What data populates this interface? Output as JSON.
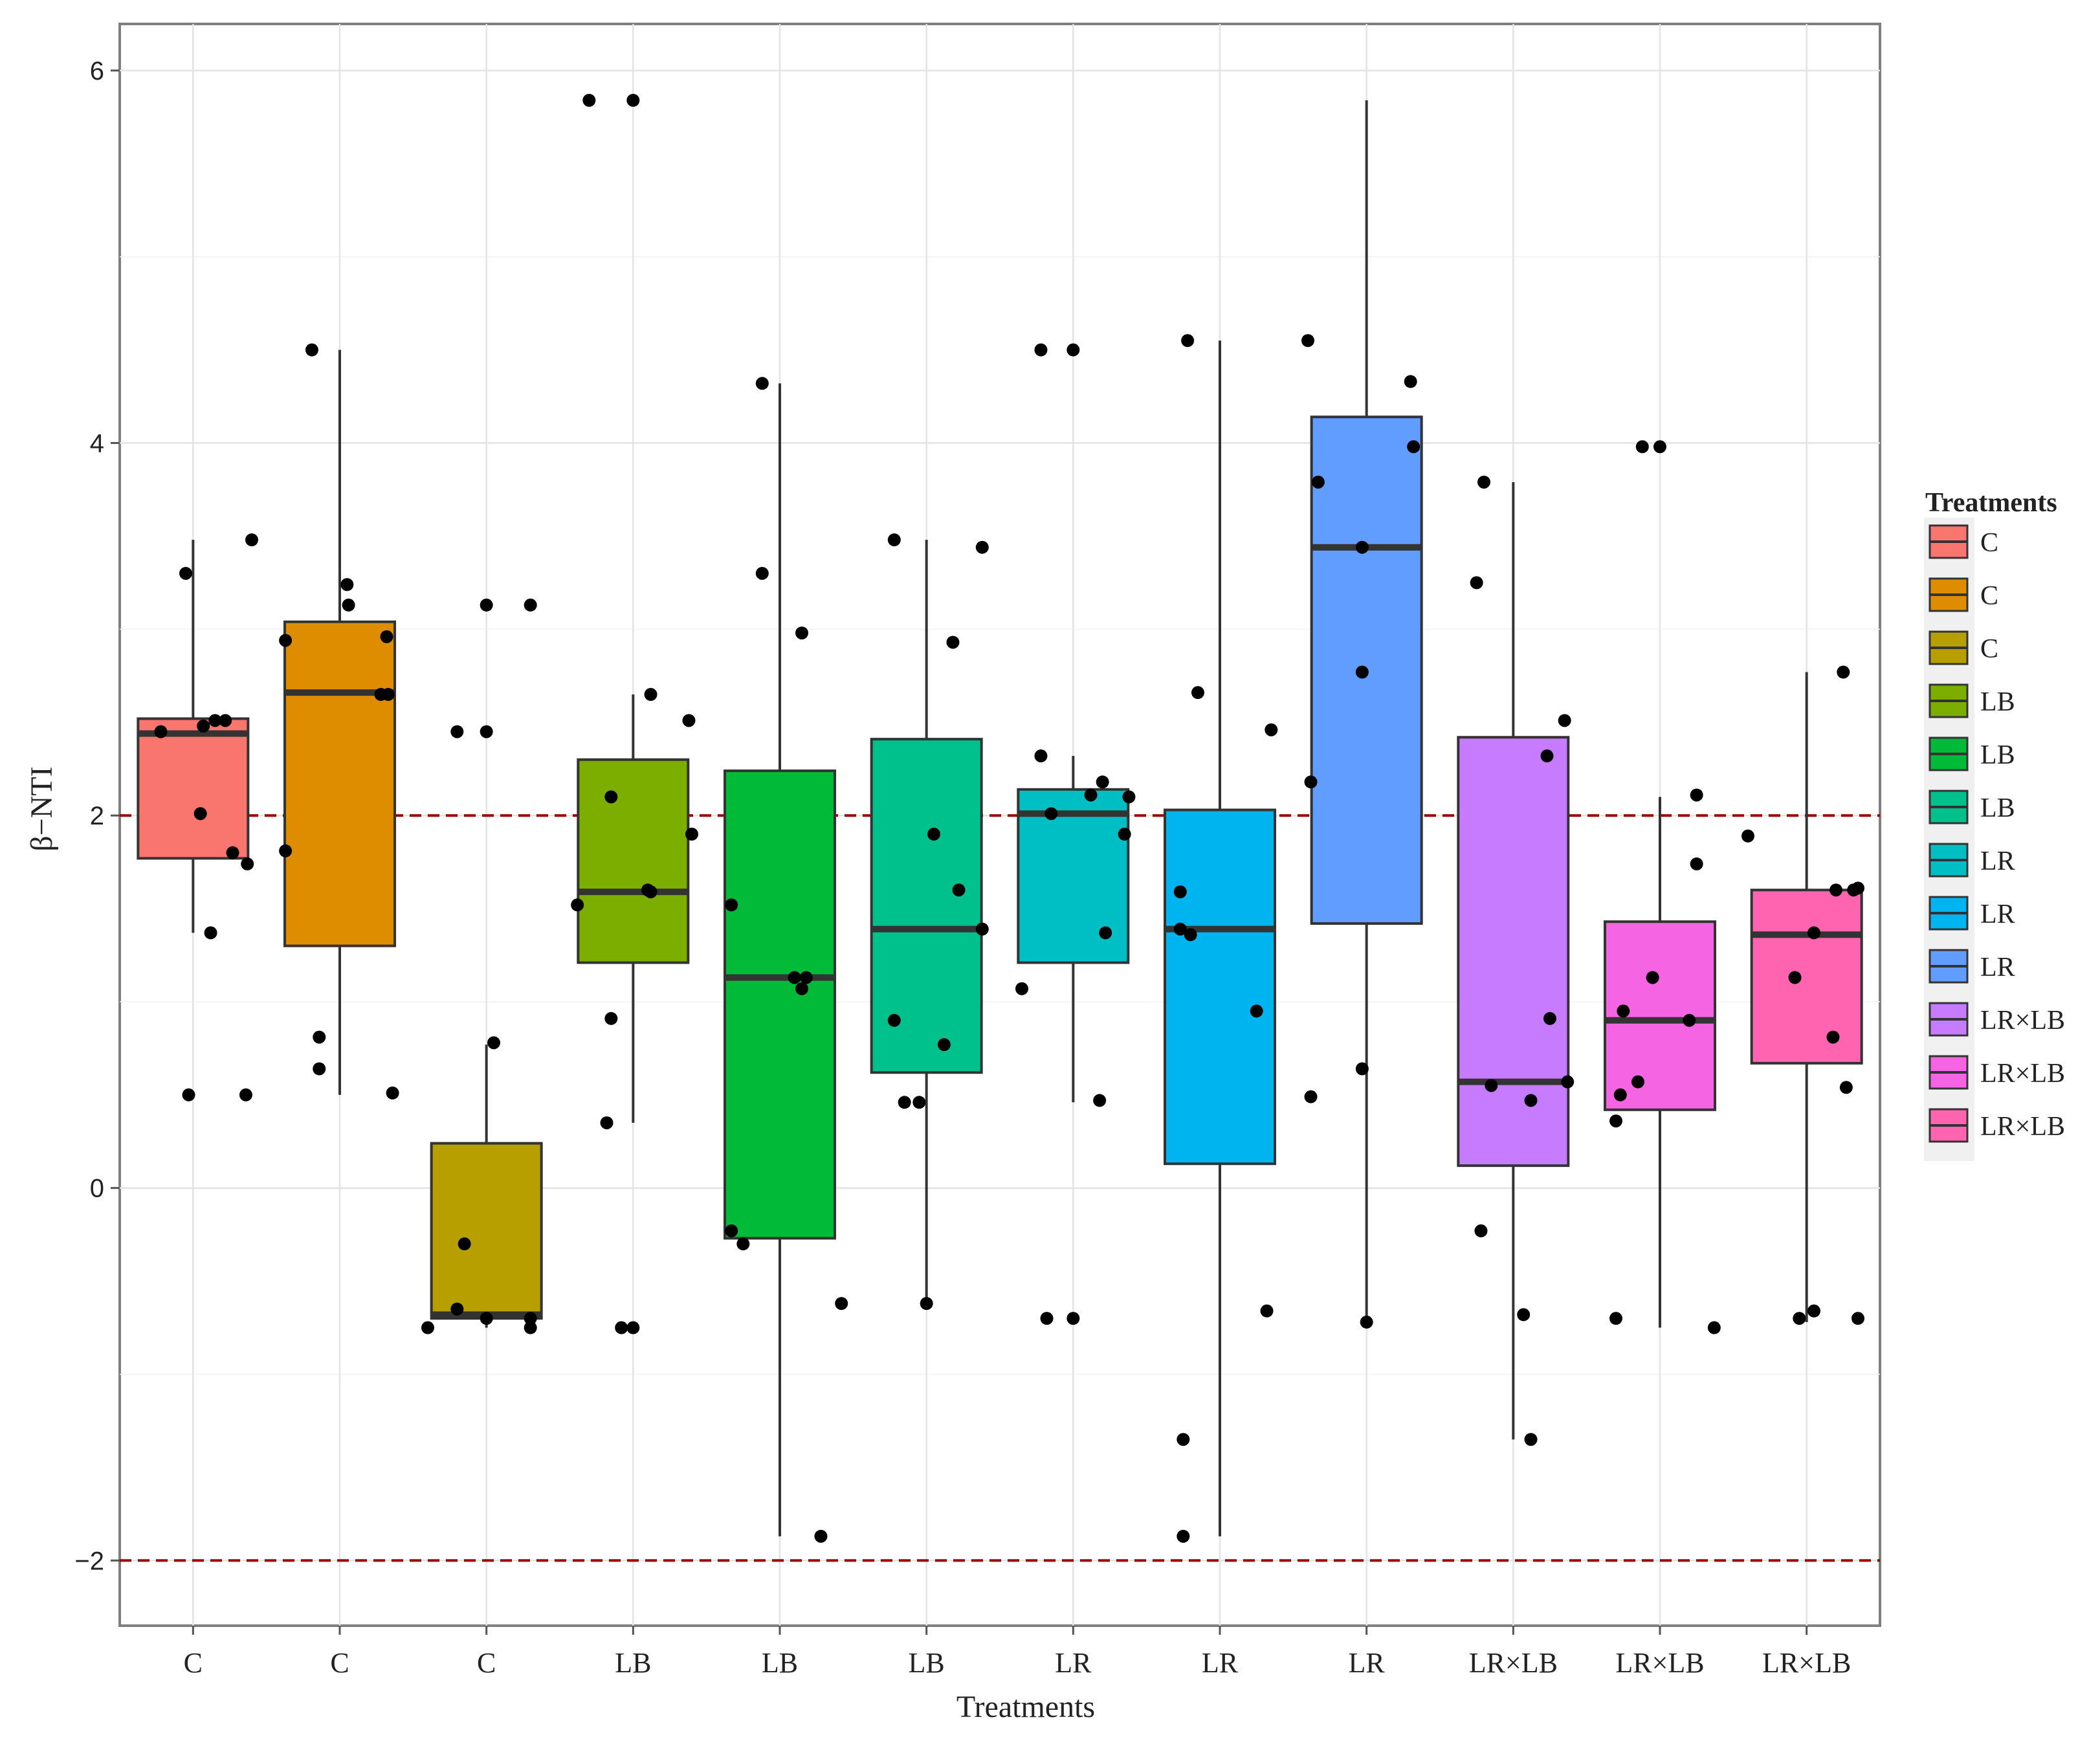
{
  "chart_data": {
    "type": "boxplot",
    "title": "",
    "xlabel": "Treatments",
    "ylabel": "β−NTI",
    "ylim": [
      -2.35,
      6.25
    ],
    "yticks": [
      -2,
      0,
      2,
      4,
      6
    ],
    "ytick_labels": [
      "−2",
      "0",
      "2",
      "4",
      "6"
    ],
    "grid": true,
    "reference_lines": [
      {
        "y": 2,
        "color": "#a00000",
        "style": "dashed"
      },
      {
        "y": -2,
        "color": "#a00000",
        "style": "dashed"
      }
    ],
    "legend": {
      "title": "Treatments",
      "position": "right",
      "labels": [
        "C",
        "C",
        "C",
        "LB",
        "LB",
        "LB",
        "LR",
        "LR",
        "LR",
        "LR×LB",
        "LR×LB",
        "LR×LB"
      ]
    },
    "categories": [
      "C",
      "C",
      "C",
      "LB",
      "LB",
      "LB",
      "LR",
      "LR",
      "LR",
      "LR×LB",
      "LR×LB",
      "LR×LB"
    ],
    "colors": [
      "#F8766D",
      "#DE8C00",
      "#B79F00",
      "#7CAE00",
      "#00BA38",
      "#00C08B",
      "#00BFC4",
      "#00B4F0",
      "#619CFF",
      "#C77CFF",
      "#F564E3",
      "#FF64B0"
    ],
    "boxes": [
      {
        "q1": 1.77,
        "median": 2.44,
        "q3": 2.52,
        "whisker_low": 1.37,
        "whisker_high": 3.48
      },
      {
        "q1": 1.3,
        "median": 2.66,
        "q3": 3.04,
        "whisker_low": 0.5,
        "whisker_high": 4.5
      },
      {
        "q1": -0.7,
        "median": -0.68,
        "q3": 0.24,
        "whisker_low": -0.75,
        "whisker_high": 0.77
      },
      {
        "q1": 1.21,
        "median": 1.59,
        "q3": 2.3,
        "whisker_low": 0.35,
        "whisker_high": 2.65
      },
      {
        "q1": -0.27,
        "median": 1.13,
        "q3": 2.24,
        "whisker_low": -1.87,
        "whisker_high": 4.32
      },
      {
        "q1": 0.62,
        "median": 1.39,
        "q3": 2.41,
        "whisker_low": -0.62,
        "whisker_high": 3.48
      },
      {
        "q1": 1.21,
        "median": 2.01,
        "q3": 2.14,
        "whisker_low": 0.46,
        "whisker_high": 2.32
      },
      {
        "q1": 0.13,
        "median": 1.39,
        "q3": 2.03,
        "whisker_low": -1.87,
        "whisker_high": 4.55
      },
      {
        "q1": 1.42,
        "median": 3.44,
        "q3": 4.14,
        "whisker_low": -0.72,
        "whisker_high": 5.84
      },
      {
        "q1": 0.12,
        "median": 0.57,
        "q3": 2.42,
        "whisker_low": -1.35,
        "whisker_high": 3.79
      },
      {
        "q1": 0.42,
        "median": 0.9,
        "q3": 1.43,
        "whisker_low": -0.75,
        "whisker_high": 2.1
      },
      {
        "q1": 0.67,
        "median": 1.36,
        "q3": 1.6,
        "whisker_low": -0.72,
        "whisker_high": 2.77
      }
    ],
    "points": [
      [
        [
          -0.05,
          3.3
        ],
        [
          -0.22,
          2.45
        ],
        [
          0.07,
          2.48
        ],
        [
          0.15,
          2.51
        ],
        [
          0.22,
          2.51
        ],
        [
          0.05,
          2.01
        ],
        [
          0.27,
          1.8
        ],
        [
          0.37,
          1.74
        ],
        [
          0.12,
          1.37
        ],
        [
          0.4,
          3.48
        ],
        [
          -0.03,
          0.5
        ],
        [
          0.36,
          0.5
        ]
      ],
      [
        [
          -0.19,
          4.5
        ],
        [
          0.05,
          3.24
        ],
        [
          0.06,
          3.13
        ],
        [
          -0.37,
          2.94
        ],
        [
          0.32,
          2.96
        ],
        [
          0.28,
          2.65
        ],
        [
          0.33,
          2.65
        ],
        [
          -0.37,
          1.81
        ],
        [
          -0.14,
          0.81
        ],
        [
          -0.14,
          0.64
        ],
        [
          0.36,
          0.51
        ]
      ],
      [
        [
          -0.2,
          2.45
        ],
        [
          0.0,
          2.45
        ],
        [
          0.0,
          3.13
        ],
        [
          0.3,
          3.13
        ],
        [
          0.05,
          0.78
        ],
        [
          -0.15,
          -0.3
        ],
        [
          -0.2,
          -0.65
        ],
        [
          0.0,
          -0.7
        ],
        [
          0.3,
          -0.7
        ],
        [
          0.3,
          -0.75
        ],
        [
          -0.4,
          -0.75
        ]
      ],
      [
        [
          -0.3,
          5.84
        ],
        [
          0.0,
          5.84
        ],
        [
          0.12,
          2.65
        ],
        [
          0.38,
          2.51
        ],
        [
          -0.15,
          2.1
        ],
        [
          0.4,
          1.9
        ],
        [
          0.1,
          1.6
        ],
        [
          0.12,
          1.59
        ],
        [
          -0.38,
          1.52
        ],
        [
          -0.15,
          0.91
        ],
        [
          -0.18,
          0.35
        ],
        [
          -0.08,
          -0.75
        ],
        [
          0.0,
          -0.75
        ]
      ],
      [
        [
          -0.12,
          4.32
        ],
        [
          -0.12,
          3.3
        ],
        [
          0.15,
          2.98
        ],
        [
          -0.33,
          1.52
        ],
        [
          0.1,
          1.13
        ],
        [
          0.18,
          1.13
        ],
        [
          0.15,
          1.07
        ],
        [
          -0.33,
          -0.23
        ],
        [
          -0.25,
          -0.3
        ],
        [
          0.42,
          -0.62
        ],
        [
          0.28,
          -1.87
        ]
      ],
      [
        [
          -0.22,
          3.48
        ],
        [
          0.38,
          3.44
        ],
        [
          0.18,
          2.93
        ],
        [
          0.05,
          1.9
        ],
        [
          0.22,
          1.6
        ],
        [
          0.38,
          1.39
        ],
        [
          -0.22,
          0.9
        ],
        [
          0.12,
          0.77
        ],
        [
          -0.15,
          0.46
        ],
        [
          -0.05,
          0.46
        ],
        [
          0.0,
          -0.62
        ]
      ],
      [
        [
          -0.22,
          4.5
        ],
        [
          0.0,
          4.5
        ],
        [
          -0.22,
          2.32
        ],
        [
          0.2,
          2.18
        ],
        [
          0.12,
          2.11
        ],
        [
          0.38,
          2.1
        ],
        [
          -0.15,
          2.01
        ],
        [
          0.35,
          1.9
        ],
        [
          0.22,
          1.37
        ],
        [
          -0.35,
          1.07
        ],
        [
          0.18,
          0.47
        ],
        [
          -0.18,
          -0.7
        ],
        [
          0.0,
          -0.7
        ]
      ],
      [
        [
          -0.22,
          4.55
        ],
        [
          -0.15,
          2.66
        ],
        [
          0.35,
          2.46
        ],
        [
          -0.27,
          1.59
        ],
        [
          -0.27,
          1.39
        ],
        [
          -0.2,
          1.36
        ],
        [
          0.25,
          0.95
        ],
        [
          -0.25,
          -1.35
        ],
        [
          -0.25,
          -1.87
        ],
        [
          0.32,
          -0.66
        ]
      ],
      [
        [
          -0.4,
          4.55
        ],
        [
          0.3,
          4.33
        ],
        [
          0.32,
          3.98
        ],
        [
          -0.33,
          3.79
        ],
        [
          -0.03,
          3.44
        ],
        [
          -0.03,
          2.77
        ],
        [
          -0.38,
          2.18
        ],
        [
          -0.38,
          0.49
        ],
        [
          -0.03,
          0.64
        ],
        [
          0.0,
          -0.72
        ]
      ],
      [
        [
          -0.2,
          3.79
        ],
        [
          -0.25,
          3.25
        ],
        [
          0.35,
          2.51
        ],
        [
          0.23,
          2.32
        ],
        [
          0.25,
          0.91
        ],
        [
          0.37,
          0.57
        ],
        [
          -0.15,
          0.55
        ],
        [
          0.12,
          0.47
        ],
        [
          -0.22,
          -0.23
        ],
        [
          0.07,
          -0.68
        ],
        [
          0.12,
          -1.35
        ]
      ],
      [
        [
          -0.12,
          3.98
        ],
        [
          0.0,
          3.98
        ],
        [
          0.25,
          2.11
        ],
        [
          0.25,
          1.74
        ],
        [
          -0.25,
          0.95
        ],
        [
          -0.05,
          1.13
        ],
        [
          0.2,
          0.9
        ],
        [
          -0.15,
          0.57
        ],
        [
          -0.3,
          0.36
        ],
        [
          -0.27,
          0.5
        ],
        [
          0.37,
          -0.75
        ],
        [
          -0.3,
          -0.7
        ]
      ],
      [
        [
          0.25,
          2.77
        ],
        [
          -0.4,
          1.89
        ],
        [
          0.2,
          1.6
        ],
        [
          0.32,
          1.6
        ],
        [
          0.35,
          1.61
        ],
        [
          0.05,
          1.37
        ],
        [
          -0.08,
          1.13
        ],
        [
          0.18,
          0.81
        ],
        [
          0.27,
          0.54
        ],
        [
          0.05,
          -0.66
        ],
        [
          -0.05,
          -0.7
        ],
        [
          0.35,
          -0.7
        ]
      ]
    ]
  }
}
